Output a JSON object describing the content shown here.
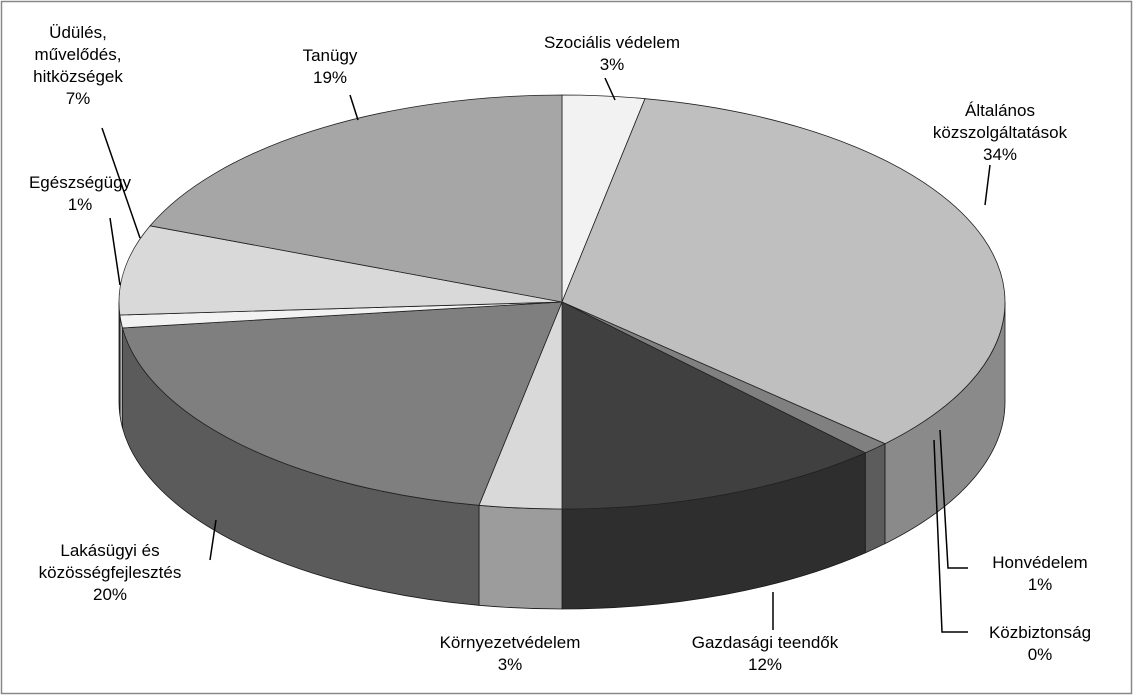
{
  "chart_data": {
    "type": "pie3d",
    "categories": [
      "Szociális védelem",
      "Általános közszolgáltatások",
      "Honvédelem",
      "Közbiztonság",
      "Gazdasági teendők",
      "Környezetvédelem",
      "Lakásügyi és közösségfejlesztés",
      "Egészségügy",
      "Üdülés, művelődés, hitközségek",
      "Tanügy"
    ],
    "values": [
      3,
      34,
      1,
      0,
      12,
      3,
      20,
      1,
      7,
      19
    ],
    "value_labels": [
      "3%",
      "34%",
      "1%",
      "0%",
      "12%",
      "3%",
      "20%",
      "1%",
      "7%",
      "19%"
    ],
    "colors": [
      "#f2f2f2",
      "#bfbfbf",
      "#808080",
      "#ffffff",
      "#404040",
      "#d9d9d9",
      "#7f7f7f",
      "#f2f2f2",
      "#d9d9d9",
      "#a6a6a6"
    ]
  }
}
